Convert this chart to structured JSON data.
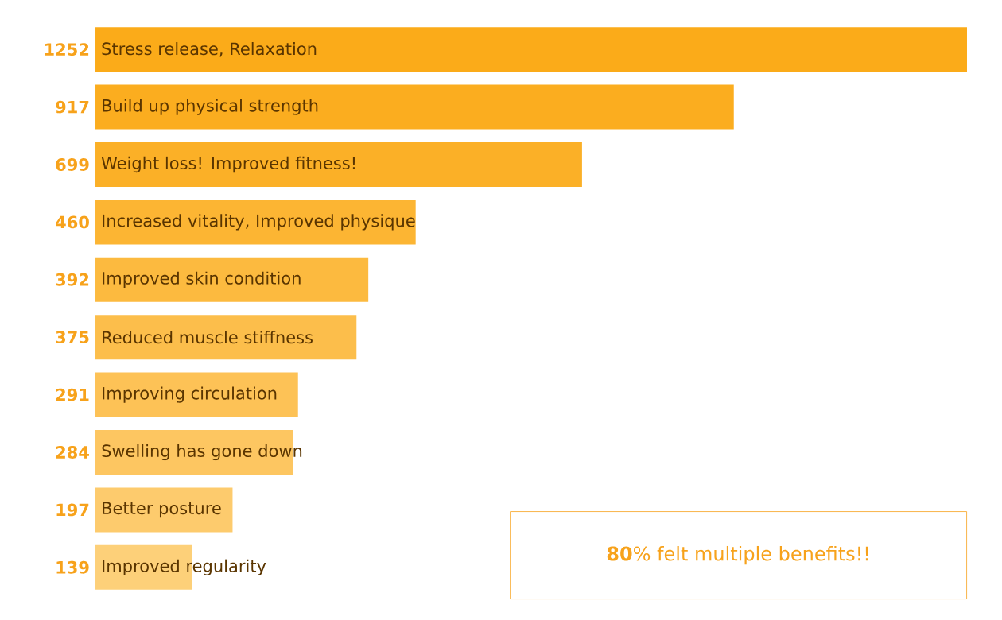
{
  "chart_data": {
    "type": "bar",
    "orientation": "horizontal",
    "categories": [
      "Stress release, Relaxation",
      "Build up physical strength",
      "Weight loss! Improved fitness!",
      "Increased vitality, Improved physique",
      "Improved skin condition",
      "Reduced muscle stiffness",
      "Improving circulation",
      "Swelling has gone down",
      "Better posture",
      "Improved regularity"
    ],
    "values": [
      1252,
      917,
      699,
      460,
      392,
      375,
      291,
      284,
      197,
      139
    ],
    "colors": [
      "#fbab19",
      "#fbad1f",
      "#fbb027",
      "#fcb533",
      "#fcba3f",
      "#fcbe4b",
      "#fdc256",
      "#fdc661",
      "#fdcb6d",
      "#fdd079"
    ],
    "data_labels": true,
    "annotations": [
      "**80**% felt multiple benefits!!"
    ]
  }
}
